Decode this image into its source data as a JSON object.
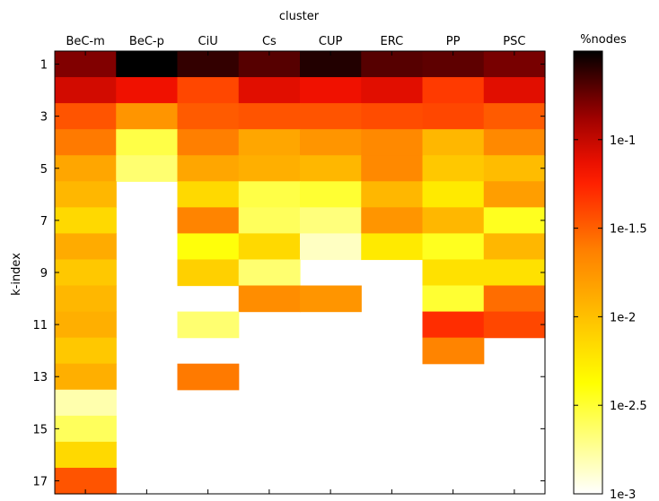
{
  "chart_data": {
    "type": "heatmap",
    "title": "cluster",
    "ylabel": "k-index",
    "colorbar": {
      "title": "%nodes",
      "scale": "log10",
      "range": [
        0.001,
        0.3162
      ],
      "ticks": [
        "1e-1",
        "1e-1.5",
        "1e-2",
        "1e-2.5",
        "1e-3"
      ],
      "tick_values": [
        -1,
        -1.5,
        -2,
        -2.5,
        -3
      ],
      "colormap": "hot (reversed)"
    },
    "columns": [
      "BeC-m",
      "BeC-p",
      "CiU",
      "Cs",
      "CUP",
      "ERC",
      "PP",
      "PSC"
    ],
    "rows": [
      1,
      2,
      3,
      4,
      5,
      6,
      7,
      8,
      9,
      10,
      11,
      12,
      13,
      14,
      15,
      16,
      17
    ],
    "ytick_labels": [
      "1",
      "3",
      "5",
      "7",
      "9",
      "11",
      "13",
      "15",
      "17"
    ],
    "ytick_rows": [
      1,
      3,
      5,
      7,
      9,
      11,
      13,
      15,
      17
    ],
    "note": "cell values are log10(%nodes); null = no nodes (white)",
    "values": [
      [
        -0.8,
        -0.5,
        -0.62,
        -0.7,
        -0.58,
        -0.7,
        -0.72,
        -0.78
      ],
      [
        -1.05,
        -1.15,
        -1.4,
        -1.1,
        -1.15,
        -1.1,
        -1.35,
        -1.1
      ],
      [
        -1.45,
        -1.75,
        -1.48,
        -1.45,
        -1.45,
        -1.42,
        -1.4,
        -1.48
      ],
      [
        -1.6,
        -2.55,
        -1.62,
        -1.85,
        -1.75,
        -1.68,
        -1.95,
        -1.68
      ],
      [
        -1.85,
        -2.65,
        -1.85,
        -1.9,
        -1.95,
        -1.68,
        -2.05,
        -1.98
      ],
      [
        -1.95,
        null,
        -2.15,
        -2.55,
        -2.5,
        -1.95,
        -2.25,
        -1.8
      ],
      [
        -2.15,
        null,
        -1.65,
        -2.6,
        -2.68,
        -1.75,
        -1.95,
        -2.45
      ],
      [
        -1.88,
        null,
        -2.4,
        -2.15,
        -2.85,
        -2.25,
        -2.45,
        -1.95
      ],
      [
        -2.05,
        null,
        -2.1,
        -2.65,
        null,
        null,
        -2.2,
        -2.2
      ],
      [
        -1.95,
        null,
        null,
        -1.7,
        -1.75,
        null,
        -2.5,
        -1.55
      ],
      [
        -1.9,
        null,
        -2.65,
        null,
        null,
        null,
        -1.3,
        -1.4
      ],
      [
        -2.05,
        null,
        null,
        null,
        null,
        null,
        -1.65,
        null
      ],
      [
        -1.9,
        null,
        -1.6,
        null,
        null,
        null,
        null,
        null
      ],
      [
        -2.8,
        null,
        null,
        null,
        null,
        null,
        null,
        null
      ],
      [
        -2.6,
        null,
        null,
        null,
        null,
        null,
        null,
        null
      ],
      [
        -2.15,
        null,
        null,
        null,
        null,
        null,
        null,
        null
      ],
      [
        -1.45,
        null,
        null,
        null,
        null,
        null,
        null,
        null
      ]
    ]
  }
}
